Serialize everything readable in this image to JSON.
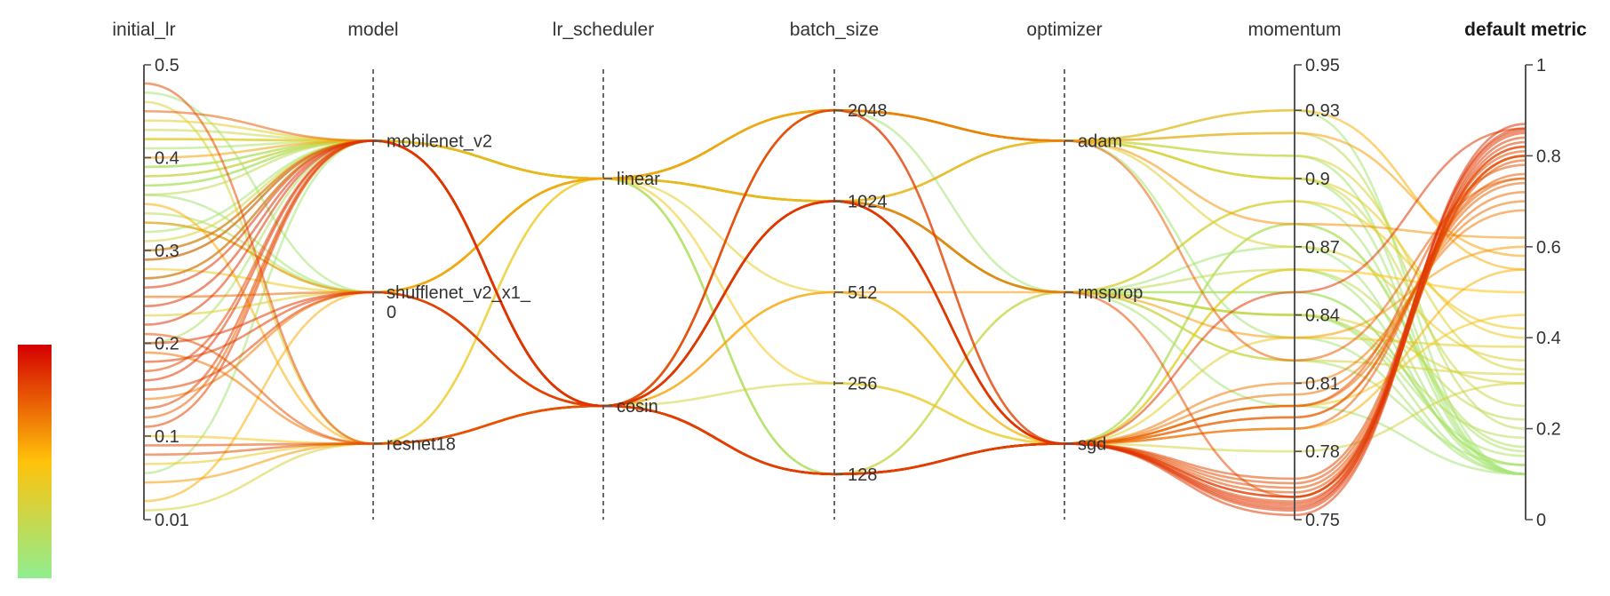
{
  "chart_data": {
    "type": "parallel_coordinates",
    "axes": [
      {
        "key": "initial_lr",
        "label": "initial_lr",
        "kind": "numeric",
        "range": [
          0.01,
          0.5
        ],
        "ticks": [
          {
            "v": 0.5,
            "label": "0.5"
          },
          {
            "v": 0.4,
            "label": "0.4"
          },
          {
            "v": 0.3,
            "label": "0.3"
          },
          {
            "v": 0.2,
            "label": "0.2"
          },
          {
            "v": 0.1,
            "label": "0.1"
          },
          {
            "v": 0.01,
            "label": "0.01"
          }
        ]
      },
      {
        "key": "model",
        "label": "model",
        "kind": "category",
        "categories": [
          {
            "name": "mobilenet_v2",
            "label": [
              "mobilenet_v2"
            ],
            "level": 0.833
          },
          {
            "name": "shufflenet_v2_x1_0",
            "label": [
              "shufflenet_v2_x1_",
              "0"
            ],
            "level": 0.5
          },
          {
            "name": "resnet18",
            "label": [
              "resnet18"
            ],
            "level": 0.167
          }
        ]
      },
      {
        "key": "lr_scheduler",
        "label": "lr_scheduler",
        "kind": "category",
        "categories": [
          {
            "name": "linear",
            "label": [
              "linear"
            ],
            "level": 0.75
          },
          {
            "name": "cosin",
            "label": [
              "cosin"
            ],
            "level": 0.25
          }
        ]
      },
      {
        "key": "batch_size",
        "label": "batch_size",
        "kind": "category",
        "categories": [
          {
            "name": "2048",
            "label": [
              "2048"
            ],
            "level": 0.9
          },
          {
            "name": "1024",
            "label": [
              "1024"
            ],
            "level": 0.7
          },
          {
            "name": "512",
            "label": [
              "512"
            ],
            "level": 0.5
          },
          {
            "name": "256",
            "label": [
              "256"
            ],
            "level": 0.3
          },
          {
            "name": "128",
            "label": [
              "128"
            ],
            "level": 0.1
          }
        ]
      },
      {
        "key": "optimizer",
        "label": "optimizer",
        "kind": "category",
        "categories": [
          {
            "name": "adam",
            "label": [
              "adam"
            ],
            "level": 0.833
          },
          {
            "name": "rmsprop",
            "label": [
              "rmsprop"
            ],
            "level": 0.5
          },
          {
            "name": "sgd",
            "label": [
              "sgd"
            ],
            "level": 0.167
          }
        ]
      },
      {
        "key": "momentum",
        "label": "momentum",
        "kind": "numeric",
        "range": [
          0.75,
          0.95
        ],
        "ticks": [
          {
            "v": 0.95,
            "label": "0.95"
          },
          {
            "v": 0.93,
            "label": "0.93"
          },
          {
            "v": 0.9,
            "label": "0.9"
          },
          {
            "v": 0.87,
            "label": "0.87"
          },
          {
            "v": 0.84,
            "label": "0.84"
          },
          {
            "v": 0.81,
            "label": "0.81"
          },
          {
            "v": 0.78,
            "label": "0.78"
          },
          {
            "v": 0.75,
            "label": "0.75"
          }
        ]
      },
      {
        "key": "metric",
        "label": "default metric",
        "kind": "numeric",
        "range": [
          0,
          1
        ],
        "bold": true,
        "ticks": [
          {
            "v": 1,
            "label": "1"
          },
          {
            "v": 0.8,
            "label": "0.8"
          },
          {
            "v": 0.6,
            "label": "0.6"
          },
          {
            "v": 0.4,
            "label": "0.4"
          },
          {
            "v": 0.2,
            "label": "0.2"
          },
          {
            "v": 0,
            "label": "0"
          }
        ]
      }
    ],
    "color_scale": {
      "by": "default metric",
      "range": [
        0,
        1
      ],
      "stops": [
        "#90ee90",
        "#ffc20a",
        "#d40000"
      ]
    },
    "rows": [
      [
        0.24,
        "mobilenet_v2",
        "cosin",
        "1024",
        "sgd",
        0.755,
        0.87
      ],
      [
        0.22,
        "mobilenet_v2",
        "cosin",
        "1024",
        "sgd",
        0.757,
        0.86
      ],
      [
        0.26,
        "mobilenet_v2",
        "cosin",
        "1024",
        "sgd",
        0.76,
        0.855
      ],
      [
        0.2,
        "shufflenet_v2_x1_0",
        "cosin",
        "128",
        "sgd",
        0.752,
        0.85
      ],
      [
        0.18,
        "shufflenet_v2_x1_0",
        "cosin",
        "128",
        "sgd",
        0.754,
        0.84
      ],
      [
        0.15,
        "shufflenet_v2_x1_0",
        "cosin",
        "128",
        "sgd",
        0.756,
        0.83
      ],
      [
        0.13,
        "mobilenet_v2",
        "cosin",
        "128",
        "sgd",
        0.758,
        0.82
      ],
      [
        0.11,
        "mobilenet_v2",
        "cosin",
        "128",
        "sgd",
        0.76,
        0.82
      ],
      [
        0.09,
        "resnet18",
        "cosin",
        "128",
        "sgd",
        0.762,
        0.8
      ],
      [
        0.08,
        "resnet18",
        "cosin",
        "128",
        "sgd",
        0.764,
        0.79
      ],
      [
        0.29,
        "mobilenet_v2",
        "cosin",
        "1024",
        "sgd",
        0.766,
        0.8
      ],
      [
        0.17,
        "mobilenet_v2",
        "cosin",
        "128",
        "sgd",
        0.768,
        0.81
      ],
      [
        0.27,
        "mobilenet_v2",
        "cosin",
        "1024",
        "sgd",
        0.79,
        0.76
      ],
      [
        0.3,
        "mobilenet_v2",
        "cosin",
        "1024",
        "sgd",
        0.795,
        0.74
      ],
      [
        0.25,
        "shufflenet_v2_x1_0",
        "cosin",
        "128",
        "sgd",
        0.8,
        0.72
      ],
      [
        0.19,
        "resnet18",
        "cosin",
        "128",
        "sgd",
        0.805,
        0.7
      ],
      [
        0.14,
        "shufflenet_v2_x1_0",
        "cosin",
        "128",
        "sgd",
        0.81,
        0.68
      ],
      [
        0.16,
        "mobilenet_v2",
        "cosin",
        "2048",
        "sgd",
        0.85,
        0.86
      ],
      [
        0.21,
        "resnet18",
        "cosin",
        "2048",
        "sgd",
        0.8,
        0.78
      ],
      [
        0.12,
        "mobilenet_v2",
        "cosin",
        "128",
        "sgd",
        0.795,
        0.75
      ],
      [
        0.48,
        "resnet18",
        "cosin",
        "1024",
        "rmsprop",
        0.76,
        0.8
      ],
      [
        0.45,
        "mobilenet_v2",
        "cosin",
        "2048",
        "adam",
        0.82,
        0.75
      ],
      [
        0.33,
        "shufflenet_v2_x1_0",
        "linear",
        "2048",
        "adam",
        0.88,
        0.62
      ],
      [
        0.4,
        "mobilenet_v2",
        "linear",
        "1024",
        "adam",
        0.92,
        0.58
      ],
      [
        0.35,
        "resnet18",
        "cosin",
        "512",
        "sgd",
        0.79,
        0.55
      ],
      [
        0.05,
        "resnet18",
        "cosin",
        "512",
        "rmsprop",
        0.83,
        0.6
      ],
      [
        0.03,
        "shufflenet_v2_x1_0",
        "linear",
        "2048",
        "adam",
        0.93,
        0.55
      ],
      [
        0.42,
        "mobilenet_v2",
        "cosin",
        "1024",
        "sgd",
        0.86,
        0.5
      ],
      [
        0.1,
        "resnet18",
        "linear",
        "256",
        "sgd",
        0.8,
        0.45
      ],
      [
        0.28,
        "shufflenet_v2_x1_0",
        "linear",
        "1024",
        "rmsprop",
        0.89,
        0.42
      ],
      [
        0.07,
        "resnet18",
        "cosin",
        "2048",
        "adam",
        0.9,
        0.4
      ],
      [
        0.44,
        "mobilenet_v2",
        "linear",
        "512",
        "sgd",
        0.83,
        0.38
      ],
      [
        0.23,
        "shufflenet_v2_x1_0",
        "cosin",
        "1024",
        "adam",
        0.87,
        0.35
      ],
      [
        0.46,
        "resnet18",
        "linear",
        "2048",
        "adam",
        0.91,
        0.33
      ],
      [
        0.31,
        "mobilenet_v2",
        "cosin",
        "256",
        "sgd",
        0.78,
        0.3
      ],
      [
        0.02,
        "resnet18",
        "cosin",
        "128",
        "rmsprop",
        0.82,
        0.32
      ],
      [
        0.38,
        "mobilenet_v2",
        "linear",
        "1024",
        "rmsprop",
        0.84,
        0.3
      ],
      [
        0.43,
        "mobilenet_v2",
        "linear",
        "2048",
        "adam",
        0.9,
        0.25
      ],
      [
        0.36,
        "mobilenet_v2",
        "linear",
        "1024",
        "rmsprop",
        0.86,
        0.22
      ],
      [
        0.34,
        "shufflenet_v2_x1_0",
        "linear",
        "2048",
        "adam",
        0.92,
        0.2
      ],
      [
        0.39,
        "mobilenet_v2",
        "cosin",
        "1024",
        "rmsprop",
        0.84,
        0.18
      ],
      [
        0.37,
        "mobilenet_v2",
        "linear",
        "128",
        "sgd",
        0.88,
        0.15
      ],
      [
        0.41,
        "mobilenet_v2",
        "linear",
        "1024",
        "rmsprop",
        0.85,
        0.12
      ],
      [
        0.32,
        "mobilenet_v2",
        "linear",
        "2048",
        "adam",
        0.93,
        0.1
      ],
      [
        0.47,
        "shufflenet_v2_x1_0",
        "linear",
        "1024",
        "rmsprop",
        0.89,
        0.1
      ],
      [
        0.06,
        "mobilenet_v2",
        "linear",
        "2048",
        "adam",
        0.91,
        0.1
      ],
      [
        0.36,
        "shufflenet_v2_x1_0",
        "cosin",
        "1024",
        "rmsprop",
        0.84,
        0.1
      ],
      [
        0.3,
        "mobilenet_v2",
        "linear",
        "1024",
        "sgd",
        0.86,
        0.1
      ],
      [
        0.38,
        "mobilenet_v2",
        "linear",
        "128",
        "rmsprop",
        0.82,
        0.12
      ],
      [
        0.2,
        "mobilenet_v2",
        "cosin",
        "1024",
        "rmsprop",
        0.84,
        0.14
      ],
      [
        0.29,
        "mobilenet_v2",
        "linear",
        "2048",
        "adam",
        0.9,
        0.1
      ],
      [
        0.39,
        "mobilenet_v2",
        "linear",
        "1024",
        "rmsprop",
        0.8,
        0.1
      ],
      [
        0.33,
        "shufflenet_v2_x1_0",
        "linear",
        "128",
        "sgd",
        0.88,
        0.16
      ],
      [
        0.37,
        "mobilenet_v2",
        "cosin",
        "1024",
        "rmsprop",
        0.85,
        0.12
      ],
      [
        0.42,
        "mobilenet_v2",
        "linear",
        "1024",
        "adam",
        0.83,
        0.1
      ],
      [
        0.27,
        "mobilenet_v2",
        "linear",
        "2048",
        "rmsprop",
        0.87,
        0.1
      ]
    ]
  }
}
